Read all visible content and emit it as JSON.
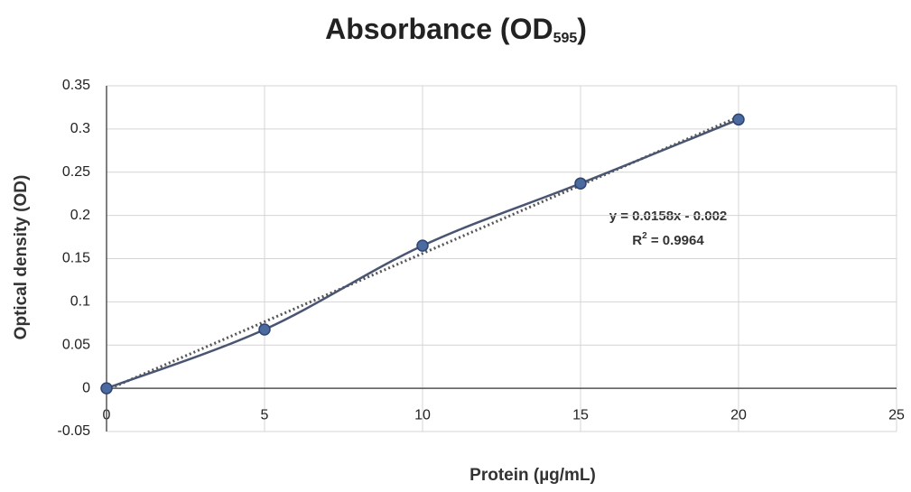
{
  "chart_data": {
    "type": "scatter",
    "title": {
      "text": "Absorbance (OD",
      "subscript": "595",
      "suffix": ")"
    },
    "x_label": "Protein (µg/mL)",
    "y_label": "Optical density (OD)",
    "x": [
      0,
      5,
      10,
      15,
      20
    ],
    "series": [
      {
        "color": "#4a6aa0",
        "values": [
          0,
          0.068,
          0.165,
          0.237,
          0.311
        ]
      }
    ],
    "smooth": true,
    "trendline": {
      "slope": 0.0158,
      "intercept": -0.002,
      "equation": "y = 0.0158x - 0.002",
      "r2": {
        "prefix": "R",
        "superscript": "2",
        "text": " = 0.9964"
      },
      "color": "#555555"
    },
    "xlim": [
      0,
      25
    ],
    "xticks": [
      0,
      5,
      10,
      15,
      20,
      25
    ],
    "ylim": [
      -0.05,
      0.35
    ],
    "yticks": [
      -0.05,
      0,
      0.05,
      0.1,
      0.15,
      0.2,
      0.25,
      0.3,
      0.35
    ],
    "grid": true
  }
}
